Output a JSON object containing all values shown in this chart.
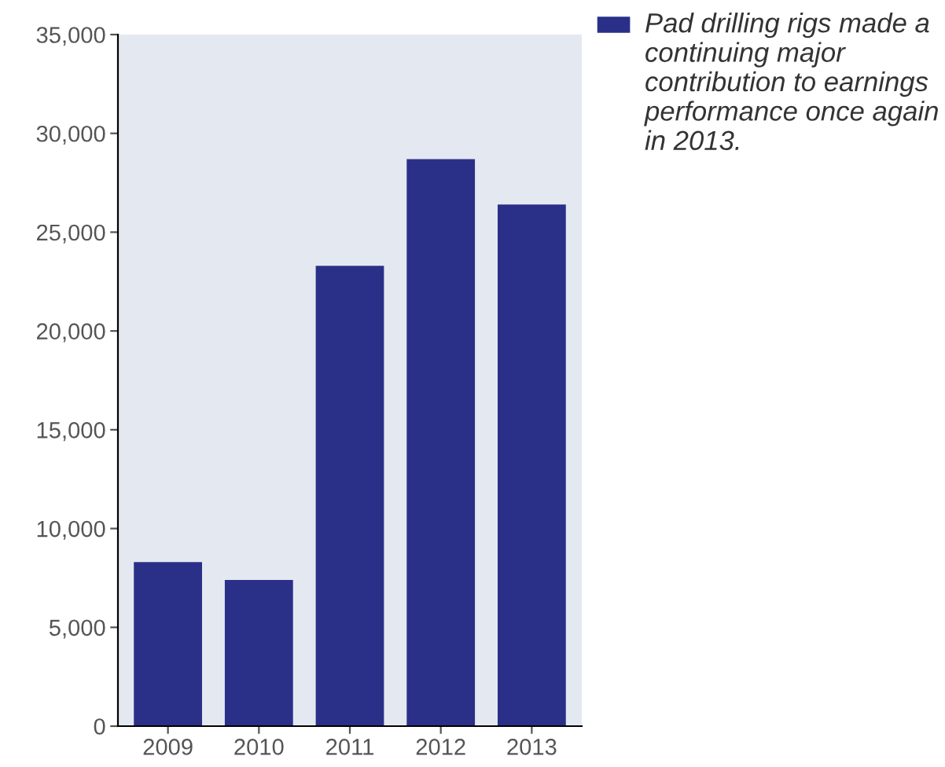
{
  "chart_data": {
    "type": "bar",
    "categories": [
      "2009",
      "2010",
      "2011",
      "2012",
      "2013"
    ],
    "series": [
      {
        "name": "Pad drilling rigs made a continuing major contribution to earnings performance once again in 2013.",
        "color": "#2a3088",
        "values": [
          8300,
          7400,
          23300,
          28700,
          26400
        ]
      }
    ],
    "ylim": [
      0,
      35000
    ],
    "yticks": [
      0,
      {
        "value": 5000,
        "label": "5,000"
      },
      {
        "value": 10000,
        "label": "10,000"
      },
      {
        "value": 15000,
        "label": "15,000"
      },
      {
        "value": 20000,
        "label": "20,000"
      },
      {
        "value": 25000,
        "label": "25,000"
      },
      {
        "value": 30000,
        "label": "30,000"
      },
      {
        "value": 35000,
        "label": "35,000"
      }
    ],
    "grid": false,
    "legend": "top right"
  }
}
